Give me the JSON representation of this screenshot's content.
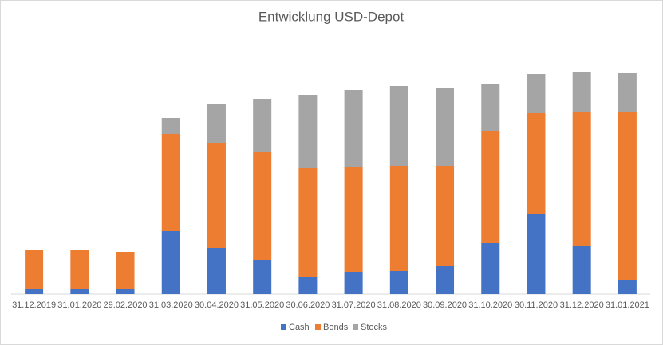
{
  "chart_data": {
    "type": "stacked_bar",
    "title": "Entwicklung USD-Depot",
    "categories": [
      "31.12.2019",
      "31.01.2020",
      "29.02.2020",
      "31.03.2020",
      "30.04.2020",
      "31.05.2020",
      "30.06.2020",
      "31.07.2020",
      "31.08.2020",
      "30.09.2020",
      "31.10.2020",
      "30.11.2020",
      "31.12.2020",
      "31.01.2021"
    ],
    "series": [
      {
        "name": "Cash",
        "color": "#4472c4",
        "values": [
          6,
          6,
          6,
          79,
          58,
          43,
          21,
          28,
          29,
          35,
          64,
          101,
          60,
          18
        ]
      },
      {
        "name": "Bonds",
        "color": "#ed7d31",
        "values": [
          49,
          49,
          47,
          122,
          132,
          135,
          137,
          132,
          132,
          126,
          140,
          126,
          169,
          210
        ]
      },
      {
        "name": "Stocks",
        "color": "#a5a5a5",
        "values": [
          0,
          0,
          0,
          20,
          49,
          67,
          92,
          96,
          100,
          98,
          60,
          49,
          50,
          50
        ]
      }
    ],
    "ylim": [
      0,
      330
    ],
    "legend": "bottom"
  }
}
